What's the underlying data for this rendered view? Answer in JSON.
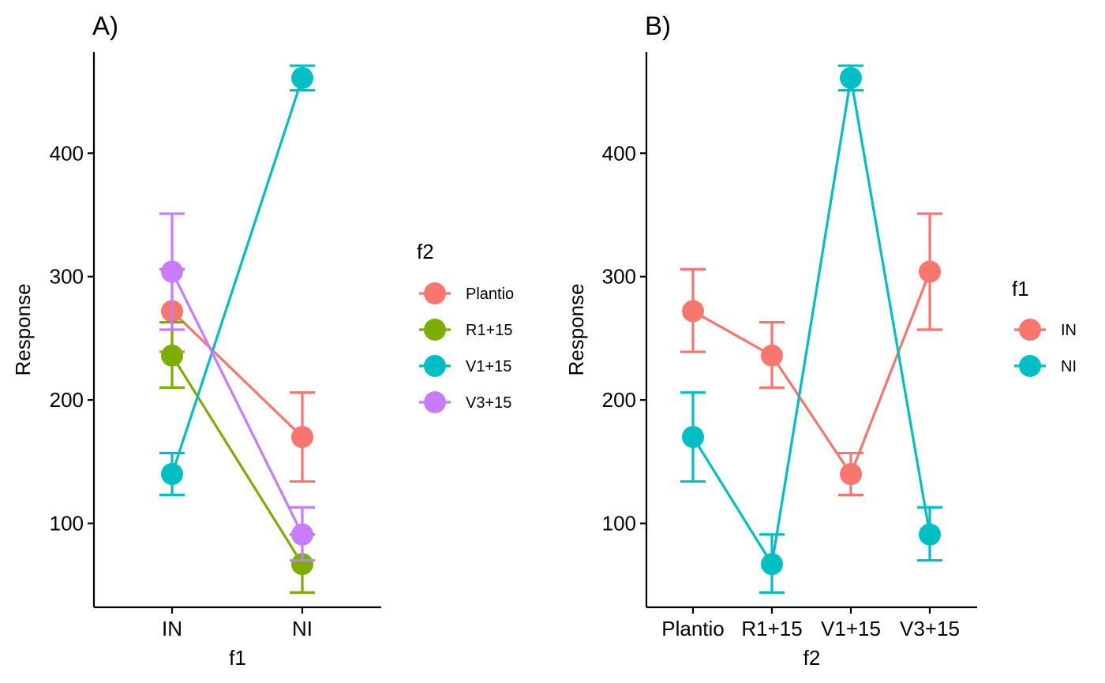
{
  "colors": {
    "red": "#F8766D",
    "green": "#7CAE00",
    "cyan": "#00BFC4",
    "purple": "#C77CFF"
  },
  "chart_data": [
    {
      "type": "line",
      "panel_label": "A)",
      "xlabel": "f1",
      "ylabel": "Response",
      "categories": [
        "IN",
        "NI"
      ],
      "ylim": [
        32,
        482
      ],
      "yticks": [
        100,
        200,
        300,
        400
      ],
      "grid": false,
      "legend": {
        "title": "f2",
        "position": "right"
      },
      "series": [
        {
          "name": "Plantio",
          "color": "#F8766D",
          "values": [
            272,
            170
          ],
          "lower": [
            239,
            134
          ],
          "upper": [
            306,
            206
          ]
        },
        {
          "name": "R1+15",
          "color": "#7CAE00",
          "values": [
            236,
            67
          ],
          "lower": [
            210,
            44
          ],
          "upper": [
            263,
            91
          ]
        },
        {
          "name": "V1+15",
          "color": "#00BFC4",
          "values": [
            140,
            461
          ],
          "lower": [
            123,
            451
          ],
          "upper": [
            157,
            471
          ]
        },
        {
          "name": "V3+15",
          "color": "#C77CFF",
          "values": [
            304,
            91
          ],
          "lower": [
            257,
            70
          ],
          "upper": [
            351,
            113
          ]
        }
      ]
    },
    {
      "type": "line",
      "panel_label": "B)",
      "xlabel": "f2",
      "ylabel": "Response",
      "categories": [
        "Plantio",
        "R1+15",
        "V1+15",
        "V3+15"
      ],
      "ylim": [
        32,
        482
      ],
      "yticks": [
        100,
        200,
        300,
        400
      ],
      "grid": false,
      "legend": {
        "title": "f1",
        "position": "right"
      },
      "series": [
        {
          "name": "IN",
          "color": "#F8766D",
          "values": [
            272,
            236,
            140,
            304
          ],
          "lower": [
            239,
            210,
            123,
            257
          ],
          "upper": [
            306,
            263,
            157,
            351
          ]
        },
        {
          "name": "NI",
          "color": "#00BFC4",
          "values": [
            170,
            67,
            461,
            91
          ],
          "lower": [
            134,
            44,
            451,
            70
          ],
          "upper": [
            206,
            91,
            471,
            113
          ]
        }
      ]
    }
  ]
}
